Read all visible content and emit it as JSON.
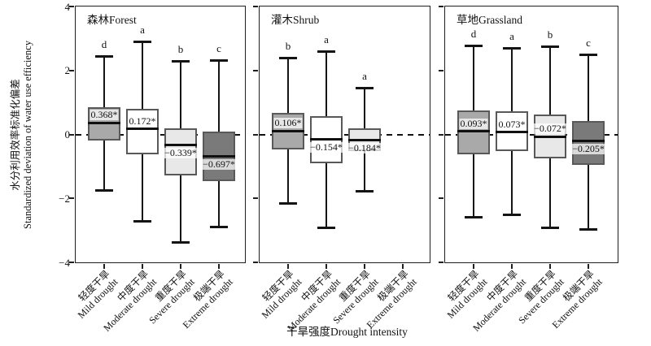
{
  "chart_data": {
    "type": "boxplot",
    "ylabel_cn": "水分利用效率标准化偏差",
    "ylabel_en": "Standardized deviation of water use efficiency",
    "xlabel": "干旱强度Drought intensity",
    "ylim": [
      -4,
      4
    ],
    "yticks": [
      {
        "label": "4",
        "value": 4
      },
      {
        "label": "2",
        "value": 2
      },
      {
        "label": "0",
        "value": 0
      },
      {
        "label": "−2",
        "value": -2
      },
      {
        "label": "−4",
        "value": -4
      }
    ],
    "reference_line": 0,
    "grid": false,
    "categories": [
      {
        "cn": "轻度干旱",
        "en": "Mild drought"
      },
      {
        "cn": "中度干旱",
        "en": "Moderate drought"
      },
      {
        "cn": "重度干旱",
        "en": "Severe drought"
      },
      {
        "cn": "极端干旱",
        "en": "Extreme drought"
      }
    ],
    "box_fills": [
      "#a9a9a9",
      "#ffffff",
      "#e8e8e8",
      "#7a7a7a"
    ],
    "box_border_color": "#595959",
    "line_color": "#141414",
    "panels": [
      {
        "title": "森林Forest",
        "boxes": [
          {
            "category": 0,
            "letter": "d",
            "whisker_high": 2.45,
            "q3": 0.85,
            "median": 0.368,
            "q1": -0.2,
            "whisker_low": -1.77,
            "label": "0.368*",
            "label_side": "above"
          },
          {
            "category": 1,
            "letter": "a",
            "whisker_high": 2.9,
            "q3": 0.8,
            "median": 0.172,
            "q1": -0.63,
            "whisker_low": -2.73,
            "label": "0.172*",
            "label_side": "above"
          },
          {
            "category": 2,
            "letter": "b",
            "whisker_high": 2.3,
            "q3": 0.18,
            "median": -0.339,
            "q1": -1.27,
            "whisker_low": -3.4,
            "label": "−0.339*",
            "label_side": "below"
          },
          {
            "category": 3,
            "letter": "c",
            "whisker_high": 2.33,
            "q3": 0.1,
            "median": -0.697,
            "q1": -1.47,
            "whisker_low": -2.9,
            "label": "−0.697*",
            "label_side": "below"
          }
        ]
      },
      {
        "title": "灌木Shrub",
        "boxes": [
          {
            "category": 0,
            "letter": "b",
            "whisker_high": 2.4,
            "q3": 0.68,
            "median": 0.106,
            "q1": -0.46,
            "whisker_low": -2.18,
            "label": "0.106*",
            "label_side": "above"
          },
          {
            "category": 1,
            "letter": "a",
            "whisker_high": 2.6,
            "q3": 0.56,
            "median": -0.154,
            "q1": -0.89,
            "whisker_low": -2.93,
            "label": "−0.154*",
            "label_side": "below"
          },
          {
            "category": 2,
            "letter": "a",
            "whisker_high": 1.45,
            "q3": 0.18,
            "median": -0.184,
            "q1": -0.53,
            "whisker_low": -1.8,
            "label": "−0.184*",
            "label_side": "below"
          }
        ]
      },
      {
        "title": "草地Grassland",
        "boxes": [
          {
            "category": 0,
            "letter": "d",
            "whisker_high": 2.78,
            "q3": 0.76,
            "median": 0.093,
            "q1": -0.63,
            "whisker_low": -2.6,
            "label": "0.093*",
            "label_side": "above"
          },
          {
            "category": 1,
            "letter": "a",
            "whisker_high": 2.7,
            "q3": 0.73,
            "median": 0.073,
            "q1": -0.53,
            "whisker_low": -2.53,
            "label": "0.073*",
            "label_side": "above"
          },
          {
            "category": 2,
            "letter": "b",
            "whisker_high": 2.76,
            "q3": 0.63,
            "median": -0.072,
            "q1": -0.76,
            "whisker_low": -2.94,
            "label": "−0.072*",
            "label_side": "above"
          },
          {
            "category": 3,
            "letter": "c",
            "whisker_high": 2.5,
            "q3": 0.43,
            "median": -0.205,
            "q1": -0.96,
            "whisker_low": -2.99,
            "label": "−0.205*",
            "label_side": "below"
          }
        ]
      }
    ]
  }
}
